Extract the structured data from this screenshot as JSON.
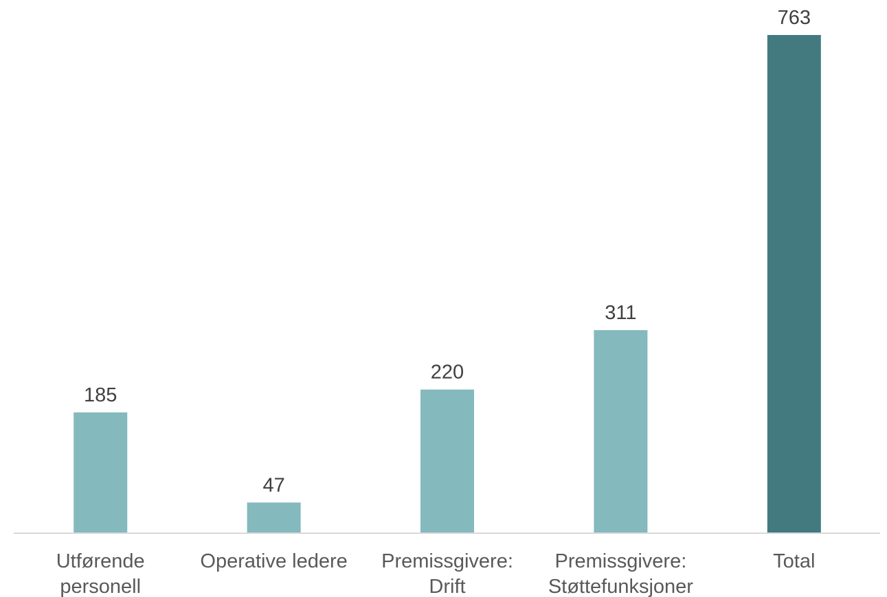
{
  "chart_data": {
    "type": "bar",
    "title": "",
    "xlabel": "",
    "ylabel": "",
    "categories": [
      [
        "Utførende",
        "personell"
      ],
      [
        "Operative ledere"
      ],
      [
        "Premissgivere:",
        "Drift"
      ],
      [
        "Premissgivere:",
        "Støttefunksjoner"
      ],
      [
        "Total"
      ]
    ],
    "values": [
      185,
      47,
      220,
      311,
      763
    ],
    "ylim": [
      0,
      763
    ],
    "grid": false,
    "legend": "none",
    "colors": {
      "bar": "#84b9be",
      "total_bar": "#427a80",
      "axis": "#d9d9d9"
    }
  }
}
